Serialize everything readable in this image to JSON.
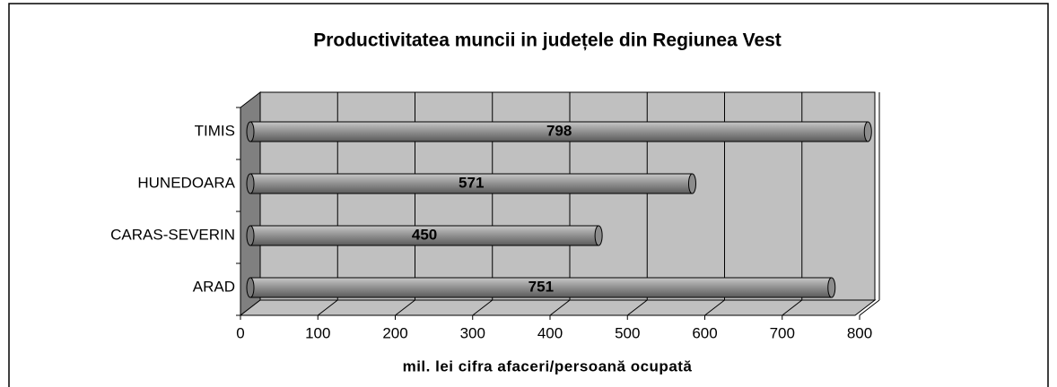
{
  "chart_data": {
    "type": "bar",
    "orientation": "horizontal",
    "title": "Productivitatea muncii in județele din Regiunea Vest",
    "x_label": "mil. lei cifra afaceri/persoană ocupată",
    "categories": [
      "ARAD",
      "CARAS-SEVERIN",
      "HUNEDOARA",
      "TIMIS"
    ],
    "values": [
      751,
      450,
      571,
      798
    ],
    "color": "#8c8c8c",
    "xlim": [
      0,
      800
    ],
    "xticks": [
      0,
      100,
      200,
      300,
      400,
      500,
      600,
      700,
      800
    ],
    "grid": true
  }
}
